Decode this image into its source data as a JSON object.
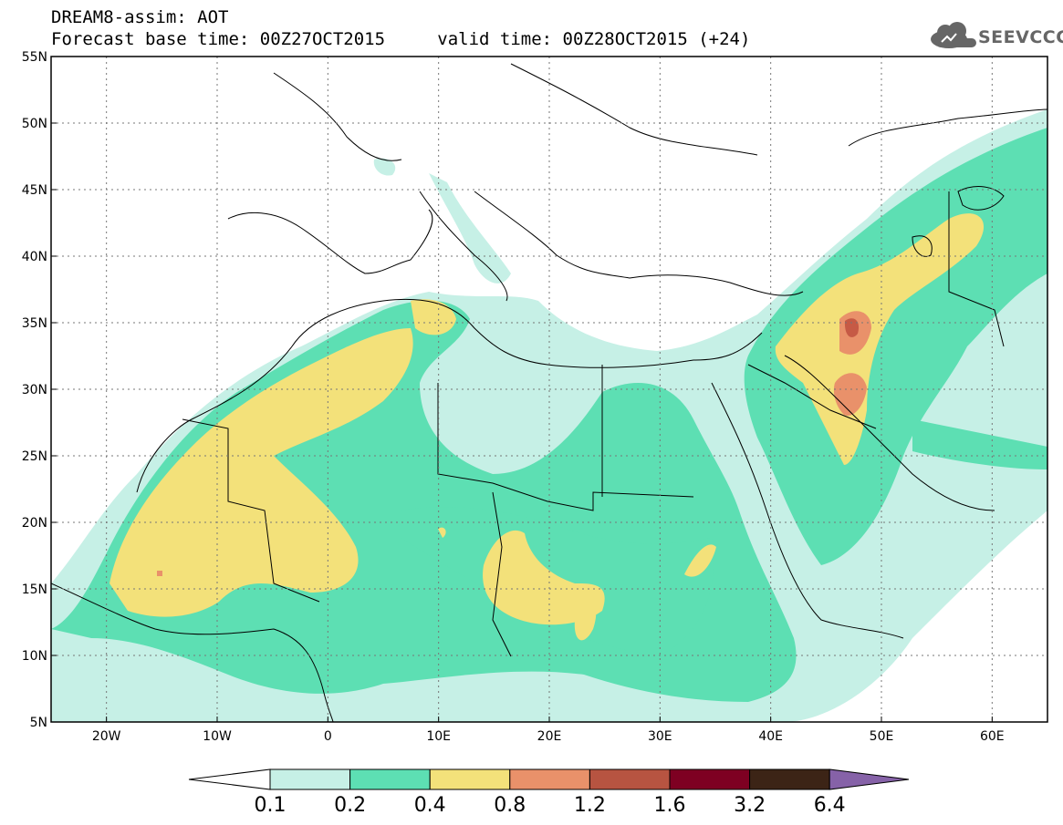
{
  "header": {
    "title": "DREAM8-assim: AOT",
    "forecast_base": "Forecast base time: 00Z27OCT2015",
    "valid_time": "valid time: 00Z28OCT2015 (+24)"
  },
  "logo": {
    "text": "SEEVCCC",
    "icon": "cloud-icon"
  },
  "map": {
    "lat_labels": [
      "55N",
      "50N",
      "45N",
      "40N",
      "35N",
      "30N",
      "25N",
      "20N",
      "15N",
      "10N",
      "5N"
    ],
    "lat_values": [
      55,
      50,
      45,
      40,
      35,
      30,
      25,
      20,
      15,
      10,
      5
    ],
    "lon_labels": [
      "20W",
      "10W",
      "0",
      "10E",
      "20E",
      "30E",
      "40E",
      "50E",
      "60E"
    ],
    "lon_values": [
      -20,
      -10,
      0,
      10,
      20,
      30,
      40,
      50,
      60
    ],
    "lon_range": [
      -25,
      65
    ],
    "lat_range": [
      5,
      55
    ],
    "grid": "dotted"
  },
  "colorbar": {
    "labels": [
      "0.1",
      "0.2",
      "0.4",
      "0.8",
      "1.2",
      "1.6",
      "3.2",
      "6.4"
    ],
    "colors": [
      "#ffffff",
      "#c6f0e6",
      "#5ddfb3",
      "#f3e17a",
      "#e9916a",
      "#b75441",
      "#7e0022",
      "#3c2416",
      "#8662a8"
    ]
  },
  "colors": {
    "light": "#c6f0e6",
    "mid": "#5ddfb3",
    "yellow": "#f3e17a",
    "orange": "#e9916a",
    "red": "#c65a45"
  }
}
